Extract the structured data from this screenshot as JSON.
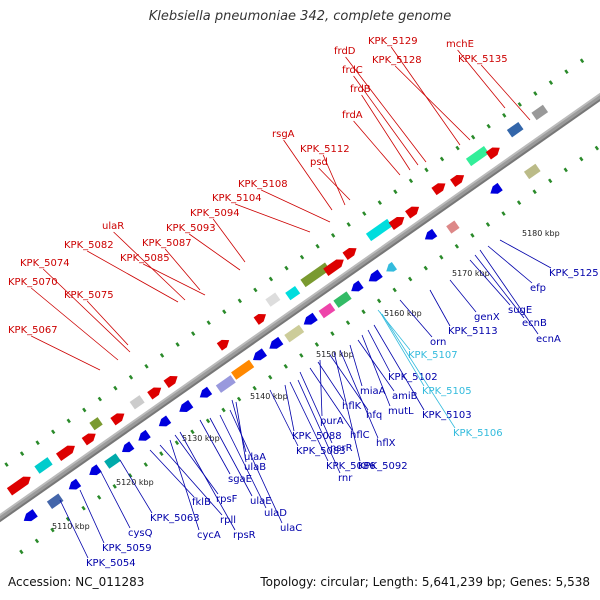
{
  "title": "Klebsiella pneumoniae 342, complete genome",
  "footer": {
    "accession": "Accession: NC_011283",
    "summary": "Topology: circular; Length: 5,641,239 bp; Genes: 5,538"
  },
  "colors": {
    "forward_label": "#cc0000",
    "reverse_label": "#0000aa",
    "highlight_label": "#33bbdd",
    "backbone": "#9a9a9a",
    "tick": "#2a8a2a"
  },
  "scale_labels": [
    "5110 kbp",
    "5120 kbp",
    "5130 kbp",
    "5140 kbp",
    "5150 kbp",
    "5160 kbp",
    "5170 kbp",
    "5180 kbp"
  ],
  "forward_labels": [
    "KPK_5067",
    "KPK_5070",
    "KPK_5074",
    "KPK_5075",
    "KPK_5082",
    "ulaR",
    "KPK_5085",
    "KPK_5087",
    "KPK_5093",
    "KPK_5094",
    "KPK_5104",
    "KPK_5108",
    "rsgA",
    "KPK_5112",
    "psd",
    "frdA",
    "frdB",
    "frdC",
    "frdD",
    "KPK_5129",
    "KPK_5128",
    "mchE",
    "KPK_5135"
  ],
  "reverse_labels": [
    "KPK_5054",
    "KPK_5059",
    "cysQ",
    "KPK_5063",
    "fklB",
    "rpll",
    "cycA",
    "rpsF",
    "rpsR",
    "sgaE",
    "ulaE",
    "ulaD",
    "ulaC",
    "ulaA",
    "ulaB",
    "KPK_5083",
    "KPK_5088",
    "KPK_5086",
    "rnr",
    "nsrR",
    "hflC",
    "hflK",
    "purA",
    "hfq",
    "KPK_5092",
    "hflX",
    "miaA",
    "amiB",
    "mutL",
    "KPK_5102",
    "KPK_5103",
    "KPK_5107",
    "KPK_5105",
    "KPK_5106",
    "orn",
    "KPK_5113",
    "genX",
    "sugE",
    "ecnB",
    "ecnA",
    "efp",
    "KPK_5125"
  ]
}
